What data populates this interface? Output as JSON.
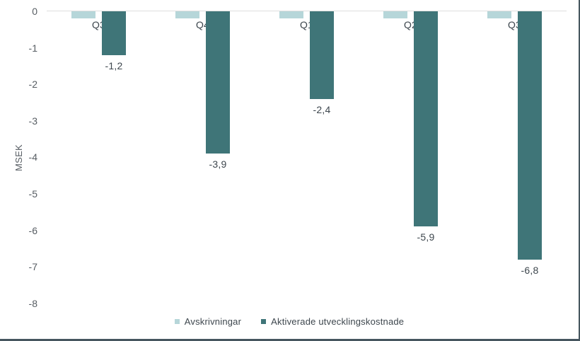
{
  "chart_data": {
    "type": "bar",
    "title": "",
    "ylabel": "MSEK",
    "categories": [
      "Q3",
      "Q4",
      "Q1",
      "Q2",
      "Q3"
    ],
    "series": [
      {
        "name": "Avskrivningar",
        "color": "#b6d6d9",
        "values": [
          -0.2,
          -0.2,
          -0.2,
          -0.2,
          -0.2
        ],
        "data_labels": [
          "",
          "",
          "",
          "",
          ""
        ]
      },
      {
        "name": "Aktiverade utvecklingskostnade",
        "color": "#3f7578",
        "values": [
          -1.2,
          -3.9,
          -2.4,
          -5.9,
          -6.8
        ],
        "data_labels": [
          "-1,2",
          "-3,9",
          "-2,4",
          "-5,9",
          "-6,8"
        ]
      }
    ],
    "ylim": [
      -8.5,
      0
    ],
    "yticks": [
      0,
      -1,
      -2,
      -3,
      -4,
      -5,
      -6,
      -7,
      -8
    ],
    "ytick_labels": [
      "0",
      "-1",
      "-2",
      "-3",
      "-4",
      "-5",
      "-6",
      "-7",
      "-8"
    ],
    "grid": "zero-line-only",
    "legend_position": "bottom-center"
  },
  "colors": {
    "frame_border": "#46565f",
    "zero_line": "#dfdfdf",
    "axis_text": "#575d63",
    "label_text": "#3d464d"
  }
}
